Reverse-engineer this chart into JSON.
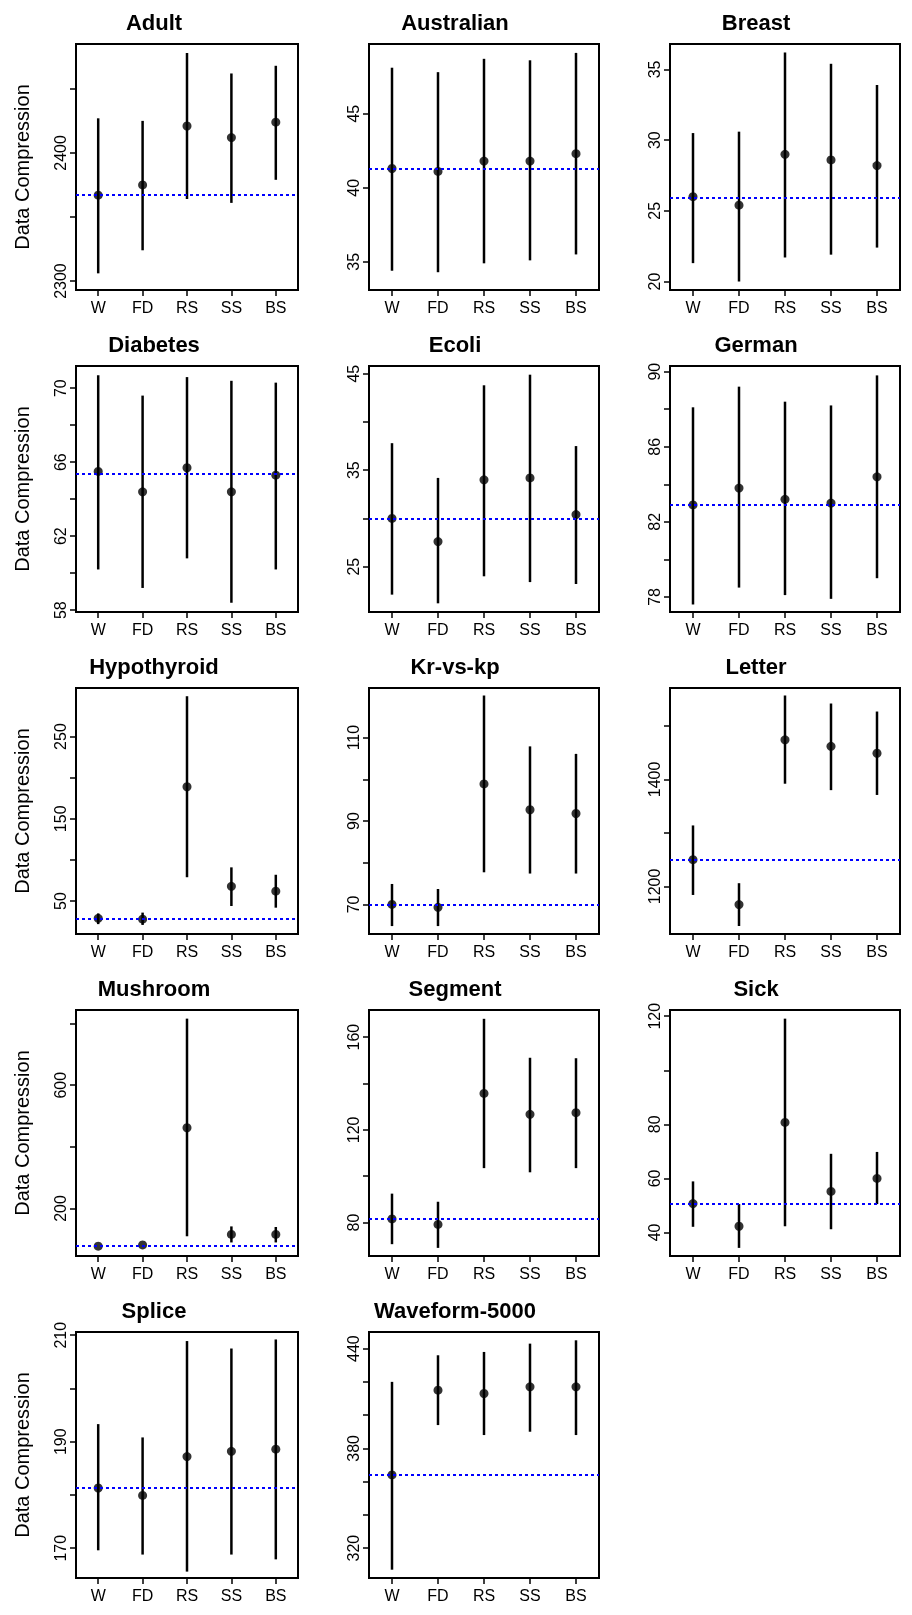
{
  "chart_data": [
    {
      "type": "scatter",
      "title": "Adult",
      "ylabel": "Data Compression",
      "categories": [
        "W",
        "FD",
        "RS",
        "SS",
        "BS"
      ],
      "color": "#000000",
      "marker": "circle",
      "values": [
        2367,
        2375,
        2421,
        2412,
        2424
      ],
      "errors": [
        [
          2306,
          2427
        ],
        [
          2324,
          2425
        ],
        [
          2364,
          2478
        ],
        [
          2361,
          2462
        ],
        [
          2379,
          2468
        ]
      ],
      "ylim": [
        2293,
        2485
      ],
      "yticks": [
        2300,
        {
          "value": 2350,
          "label": null
        },
        2400,
        {
          "value": 2450,
          "label": null
        }
      ],
      "ref_lines": [
        {
          "axis": "y",
          "value": 2367,
          "color": "#0000ff",
          "line_style": "dotted"
        }
      ]
    },
    {
      "type": "scatter",
      "title": "Australian",
      "categories": [
        "W",
        "FD",
        "RS",
        "SS",
        "BS"
      ],
      "color": "#000000",
      "marker": "circle",
      "values": [
        41.3,
        41.1,
        41.8,
        41.8,
        42.3
      ],
      "errors": [
        [
          34.4,
          48.1
        ],
        [
          34.3,
          47.8
        ],
        [
          34.9,
          48.7
        ],
        [
          35.1,
          48.6
        ],
        [
          35.5,
          49.1
        ]
      ],
      "ylim": [
        33.1,
        49.7
      ],
      "yticks": [
        35,
        40,
        45
      ],
      "ref_lines": [
        {
          "axis": "y",
          "value": 41.3,
          "color": "#0000ff",
          "line_style": "dotted"
        }
      ]
    },
    {
      "type": "scatter",
      "title": "Breast",
      "categories": [
        "W",
        "FD",
        "RS",
        "SS",
        "BS"
      ],
      "color": "#000000",
      "marker": "circle",
      "values": [
        26.0,
        25.4,
        29.0,
        28.6,
        28.2
      ],
      "errors": [
        [
          21.3,
          30.5
        ],
        [
          20.0,
          30.6
        ],
        [
          21.7,
          36.2
        ],
        [
          21.9,
          35.4
        ],
        [
          22.4,
          33.9
        ]
      ],
      "ylim": [
        19.4,
        36.8
      ],
      "yticks": [
        20,
        25,
        30,
        35
      ],
      "ref_lines": [
        {
          "axis": "y",
          "value": 25.9,
          "color": "#0000ff",
          "line_style": "dotted"
        }
      ]
    },
    {
      "type": "scatter",
      "title": "Diabetes",
      "ylabel": "Data Compression",
      "categories": [
        "W",
        "FD",
        "RS",
        "SS",
        "BS"
      ],
      "color": "#000000",
      "marker": "circle",
      "values": [
        65.5,
        64.4,
        65.7,
        64.4,
        65.3
      ],
      "errors": [
        [
          60.2,
          70.7
        ],
        [
          59.2,
          69.6
        ],
        [
          60.8,
          70.6
        ],
        [
          58.4,
          70.4
        ],
        [
          60.2,
          70.3
        ]
      ],
      "ylim": [
        57.9,
        71.2
      ],
      "yticks": [
        58,
        {
          "value": 60,
          "label": null
        },
        62,
        {
          "value": 64,
          "label": null
        },
        66,
        {
          "value": 68,
          "label": null
        },
        70
      ],
      "ref_lines": [
        {
          "axis": "y",
          "value": 65.4,
          "color": "#0000ff",
          "line_style": "dotted"
        }
      ]
    },
    {
      "type": "scatter",
      "title": "Ecoli",
      "categories": [
        "W",
        "FD",
        "RS",
        "SS",
        "BS"
      ],
      "color": "#000000",
      "marker": "circle",
      "values": [
        30.0,
        27.6,
        34.0,
        34.2,
        30.4
      ],
      "errors": [
        [
          22.1,
          37.8
        ],
        [
          21.2,
          34.2
        ],
        [
          24.0,
          43.8
        ],
        [
          23.4,
          44.9
        ],
        [
          23.2,
          37.5
        ]
      ],
      "ylim": [
        20.3,
        45.8
      ],
      "yticks": [
        25,
        {
          "value": 30,
          "label": null
        },
        35,
        {
          "value": 40,
          "label": null
        },
        45
      ],
      "ref_lines": [
        {
          "axis": "y",
          "value": 30.0,
          "color": "#0000ff",
          "line_style": "dotted"
        }
      ]
    },
    {
      "type": "scatter",
      "title": "German",
      "categories": [
        "W",
        "FD",
        "RS",
        "SS",
        "BS"
      ],
      "color": "#000000",
      "marker": "circle",
      "values": [
        82.9,
        83.8,
        83.2,
        83.0,
        84.4
      ],
      "errors": [
        [
          77.6,
          88.1
        ],
        [
          78.5,
          89.2
        ],
        [
          78.1,
          88.4
        ],
        [
          77.9,
          88.2
        ],
        [
          79.0,
          89.8
        ]
      ],
      "ylim": [
        77.2,
        90.3
      ],
      "yticks": [
        78,
        {
          "value": 80,
          "label": null
        },
        82,
        {
          "value": 84,
          "label": null
        },
        86,
        {
          "value": 88,
          "label": null
        },
        90
      ],
      "ref_lines": [
        {
          "axis": "y",
          "value": 82.9,
          "color": "#0000ff",
          "line_style": "dotted"
        }
      ]
    },
    {
      "type": "scatter",
      "title": "Hypothyroid",
      "ylabel": "Data Compression",
      "categories": [
        "W",
        "FD",
        "RS",
        "SS",
        "BS"
      ],
      "color": "#000000",
      "marker": "circle",
      "values": [
        29,
        28,
        189,
        68,
        62
      ],
      "errors": [
        [
          22,
          35
        ],
        [
          21,
          36
        ],
        [
          79,
          299
        ],
        [
          44,
          91
        ],
        [
          42,
          82
        ]
      ],
      "ylim": [
        10,
        309
      ],
      "yticks": [
        50,
        {
          "value": 100,
          "label": null
        },
        150,
        {
          "value": 200,
          "label": null
        },
        250
      ],
      "ref_lines": [
        {
          "axis": "y",
          "value": 29,
          "color": "#0000ff",
          "line_style": "dotted"
        }
      ]
    },
    {
      "type": "scatter",
      "title": "Kr-vs-kp",
      "categories": [
        "W",
        "FD",
        "RS",
        "SS",
        "BS"
      ],
      "color": "#000000",
      "marker": "circle",
      "values": [
        70.0,
        69.3,
        98.9,
        92.7,
        91.8
      ],
      "errors": [
        [
          64.8,
          74.9
        ],
        [
          64.8,
          73.7
        ],
        [
          77.7,
          120.1
        ],
        [
          77.4,
          107.9
        ],
        [
          77.4,
          106.1
        ]
      ],
      "ylim": [
        62.9,
        121.9
      ],
      "yticks": [
        70,
        {
          "value": 80,
          "label": null
        },
        90,
        {
          "value": 100,
          "label": null
        },
        110
      ],
      "ref_lines": [
        {
          "axis": "y",
          "value": 70.0,
          "color": "#0000ff",
          "line_style": "dotted"
        }
      ]
    },
    {
      "type": "scatter",
      "title": "Letter",
      "categories": [
        "W",
        "FD",
        "RS",
        "SS",
        "BS"
      ],
      "color": "#000000",
      "marker": "circle",
      "values": [
        1250,
        1166,
        1474,
        1462,
        1449
      ],
      "errors": [
        [
          1184,
          1314
        ],
        [
          1126,
          1206
        ],
        [
          1392,
          1557
        ],
        [
          1380,
          1542
        ],
        [
          1371,
          1527
        ]
      ],
      "ylim": [
        1111,
        1571
      ],
      "yticks": [
        1200,
        {
          "value": 1300,
          "label": null
        },
        1400,
        {
          "value": 1500,
          "label": null
        }
      ],
      "ref_lines": [
        {
          "axis": "y",
          "value": 1250,
          "color": "#0000ff",
          "line_style": "dotted"
        }
      ]
    },
    {
      "type": "scatter",
      "title": "Mushroom",
      "ylabel": "Data Compression",
      "categories": [
        "W",
        "FD",
        "RS",
        "SS",
        "BS"
      ],
      "color": "#000000",
      "marker": "circle",
      "values": [
        78,
        82,
        462,
        116,
        116
      ],
      "errors": [
        null,
        null,
        [
          110,
          816
        ],
        [
          90,
          142
        ],
        [
          90,
          140
        ]
      ],
      "ylim": [
        46,
        844
      ],
      "yticks": [
        200,
        {
          "value": 400,
          "label": null
        },
        600,
        {
          "value": 800,
          "label": null
        }
      ],
      "ref_lines": [
        {
          "axis": "y",
          "value": 78,
          "color": "#0000ff",
          "line_style": "dotted"
        }
      ]
    },
    {
      "type": "scatter",
      "title": "Segment",
      "categories": [
        "W",
        "FD",
        "RS",
        "SS",
        "BS"
      ],
      "color": "#000000",
      "marker": "circle",
      "values": [
        81.6,
        79.2,
        135.7,
        126.7,
        127.4
      ],
      "errors": [
        [
          70.7,
          92.5
        ],
        [
          69.1,
          89.0
        ],
        [
          103.5,
          167.9
        ],
        [
          101.7,
          151.1
        ],
        [
          103.5,
          150.9
        ]
      ],
      "ylim": [
        65.6,
        171.7
      ],
      "yticks": [
        80,
        {
          "value": 100,
          "label": null
        },
        120,
        {
          "value": 140,
          "label": null
        },
        160
      ],
      "ref_lines": [
        {
          "axis": "y",
          "value": 81.6,
          "color": "#0000ff",
          "line_style": "dotted"
        }
      ]
    },
    {
      "type": "scatter",
      "title": "Sick",
      "categories": [
        "W",
        "FD",
        "RS",
        "SS",
        "BS"
      ],
      "color": "#000000",
      "marker": "circle",
      "values": [
        50.7,
        42.3,
        80.7,
        55.2,
        60.0
      ],
      "errors": [
        [
          42.1,
          58.9
        ],
        [
          34.3,
          50.5
        ],
        [
          42.3,
          119.1
        ],
        [
          41.2,
          69.1
        ],
        [
          50.5,
          69.8
        ]
      ],
      "ylim": [
        31.3,
        122.3
      ],
      "yticks": [
        40,
        60,
        80,
        {
          "value": 100,
          "label": null
        },
        120
      ],
      "ref_lines": [
        {
          "axis": "y",
          "value": 50.7,
          "color": "#0000ff",
          "line_style": "dotted"
        }
      ]
    },
    {
      "type": "scatter",
      "title": "Splice",
      "ylabel": "Data Compression",
      "categories": [
        "W",
        "FD",
        "RS",
        "SS",
        "BS"
      ],
      "color": "#000000",
      "marker": "circle",
      "values": [
        181.3,
        179.9,
        187.2,
        188.2,
        188.6
      ],
      "errors": [
        [
          169.6,
          193.3
        ],
        [
          168.8,
          190.8
        ],
        [
          165.6,
          208.9
        ],
        [
          168.8,
          207.5
        ],
        [
          167.9,
          209.2
        ]
      ],
      "ylim": [
        164.4,
        210.6
      ],
      "yticks": [
        170,
        {
          "value": 180,
          "label": null
        },
        190,
        {
          "value": 200,
          "label": null
        },
        210
      ],
      "ref_lines": [
        {
          "axis": "y",
          "value": 181.3,
          "color": "#0000ff",
          "line_style": "dotted"
        }
      ]
    },
    {
      "type": "scatter",
      "title": "Waveform-5000",
      "categories": [
        "W",
        "FD",
        "RS",
        "SS",
        "BS"
      ],
      "color": "#000000",
      "marker": "circle",
      "values": [
        364,
        415,
        413,
        417,
        417
      ],
      "errors": [
        [
          307,
          420
        ],
        [
          394,
          436
        ],
        [
          388,
          438
        ],
        [
          390,
          443
        ],
        [
          388,
          445
        ]
      ],
      "ylim": [
        302,
        450
      ],
      "yticks": [
        320,
        {
          "value": 340,
          "label": null
        },
        {
          "value": 360,
          "label": null
        },
        380,
        {
          "value": 400,
          "label": null
        },
        {
          "value": 420,
          "label": null
        },
        440
      ],
      "ref_lines": [
        {
          "axis": "y",
          "value": 364,
          "color": "#0000ff",
          "line_style": "dotted"
        }
      ]
    }
  ]
}
